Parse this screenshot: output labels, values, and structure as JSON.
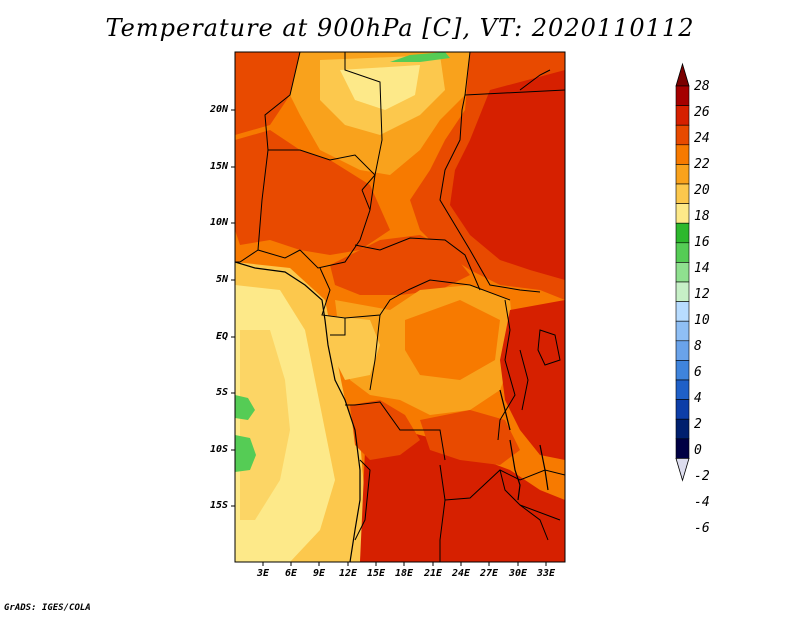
{
  "title": "Temperature at 900hPa [C], VT: 2020110112",
  "credit": "GrADS: IGES/COLA",
  "map": {
    "lat_labels": [
      "20N",
      "15N",
      "10N",
      "5N",
      "EQ",
      "5S",
      "10S",
      "15S"
    ],
    "lon_labels": [
      "3E",
      "6E",
      "9E",
      "12E",
      "15E",
      "18E",
      "21E",
      "24E",
      "27E",
      "30E",
      "33E"
    ]
  },
  "colorbar": {
    "labels": [
      "28",
      "26",
      "24",
      "22",
      "20",
      "18",
      "16",
      "14",
      "12",
      "10",
      "8",
      "6",
      "4",
      "2",
      "0",
      "-2",
      "-4",
      "-6"
    ],
    "colors": [
      "#7a0000",
      "#a50000",
      "#d62000",
      "#e84a00",
      "#f77a00",
      "#f9a21c",
      "#fcc84d",
      "#fde989",
      "#2db82d",
      "#55cc55",
      "#8fe08f",
      "#c7f0c7",
      "#b8dcff",
      "#8fbff5",
      "#6aa3ea",
      "#3f84dc",
      "#1f60c8",
      "#0d3ea8",
      "#001f6e",
      "#000044",
      "#ddddee"
    ]
  }
}
